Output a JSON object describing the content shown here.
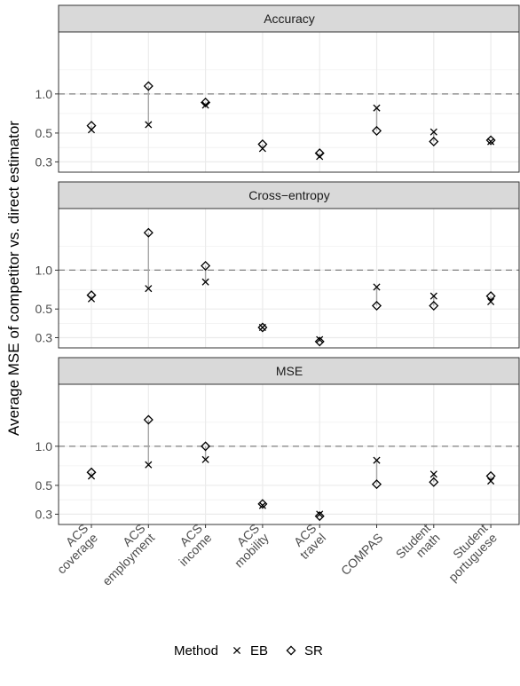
{
  "chart_data": {
    "type": "scatter",
    "ylabel": "Average MSE of competitor vs. direct estimator",
    "xlabel": "",
    "y_scale": "log",
    "ylim": [
      0.25,
      3.0
    ],
    "y_ticks": [
      0.3,
      0.5,
      1.0
    ],
    "y_tick_labels": [
      "0.3",
      "0.5",
      "1.0"
    ],
    "reference_line": 1.0,
    "categories": [
      [
        "ACS",
        "coverage"
      ],
      [
        "ACS",
        "employment"
      ],
      [
        "ACS",
        "income"
      ],
      [
        "ACS",
        "mobility"
      ],
      [
        "ACS",
        "travel"
      ],
      [
        "COMPAS"
      ],
      [
        "Student",
        "math"
      ],
      [
        "Student",
        "portuguese"
      ]
    ],
    "legend": {
      "title": "Method",
      "position": "bottom",
      "items": [
        {
          "label": "EB",
          "shape": "cross"
        },
        {
          "label": "SR",
          "shape": "diamond"
        }
      ]
    },
    "panels": [
      {
        "title": "Accuracy",
        "series": [
          {
            "name": "EB",
            "values": [
              0.53,
              0.58,
              0.82,
              0.38,
              0.33,
              0.78,
              0.51,
              0.43
            ]
          },
          {
            "name": "SR",
            "values": [
              0.57,
              1.15,
              0.86,
              0.41,
              0.35,
              0.52,
              0.43,
              0.44
            ]
          }
        ]
      },
      {
        "title": "Cross−entropy",
        "series": [
          {
            "name": "EB",
            "values": [
              0.6,
              0.72,
              0.81,
              0.36,
              0.29,
              0.74,
              0.63,
              0.57
            ]
          },
          {
            "name": "SR",
            "values": [
              0.64,
              1.95,
              1.08,
              0.36,
              0.28,
              0.53,
              0.53,
              0.63
            ]
          }
        ]
      },
      {
        "title": "MSE",
        "series": [
          {
            "name": "EB",
            "values": [
              0.59,
              0.72,
              0.79,
              0.35,
              0.3,
              0.78,
              0.61,
              0.54
            ]
          },
          {
            "name": "SR",
            "values": [
              0.63,
              1.6,
              1.0,
              0.36,
              0.29,
              0.51,
              0.53,
              0.59
            ]
          }
        ]
      }
    ]
  }
}
